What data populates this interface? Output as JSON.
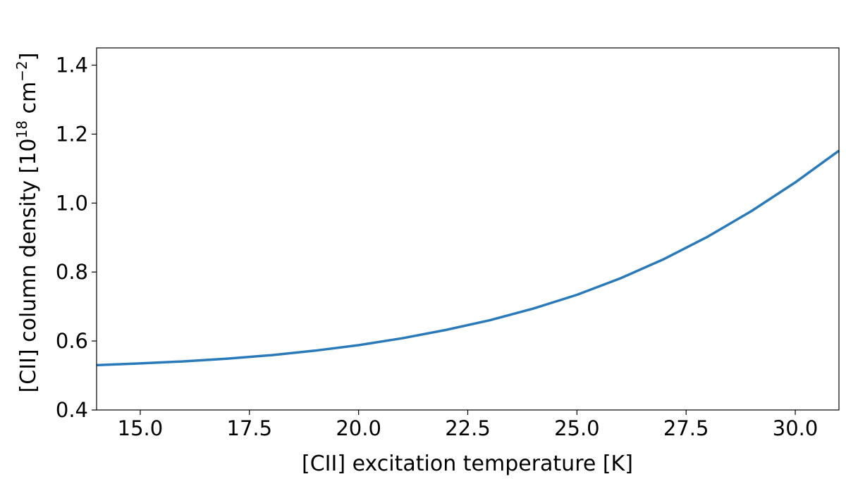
{
  "chart_data": {
    "type": "line",
    "title": "",
    "xlabel": "[CII] excitation temperature [K]",
    "ylabel": {
      "prefix": "[CII] column density [10",
      "exp1": "18",
      "mid": " cm",
      "exp2": "−2",
      "suffix": "]"
    },
    "xlim": [
      14.0,
      31.0
    ],
    "ylim": [
      0.4,
      1.45
    ],
    "xticks": [
      15.0,
      17.5,
      20.0,
      22.5,
      25.0,
      27.5,
      30.0
    ],
    "xtick_labels": [
      "15.0",
      "17.5",
      "20.0",
      "22.5",
      "25.0",
      "27.5",
      "30.0"
    ],
    "yticks": [
      0.4,
      0.6,
      0.8,
      1.0,
      1.2,
      1.4
    ],
    "ytick_labels": [
      "0.4",
      "0.6",
      "0.8",
      "1.0",
      "1.2",
      "1.4"
    ],
    "grid": false,
    "series": [
      {
        "color": "#2a7ab9",
        "x": [
          14,
          15,
          16,
          17,
          18,
          19,
          20,
          21,
          22,
          23,
          24,
          25,
          26,
          27,
          28,
          29,
          30,
          31
        ],
        "y": [
          0.53,
          0.535,
          0.541,
          0.549,
          0.559,
          0.572,
          0.588,
          0.608,
          0.632,
          0.66,
          0.694,
          0.734,
          0.782,
          0.838,
          0.903,
          0.977,
          1.06,
          1.152
        ]
      }
    ]
  }
}
